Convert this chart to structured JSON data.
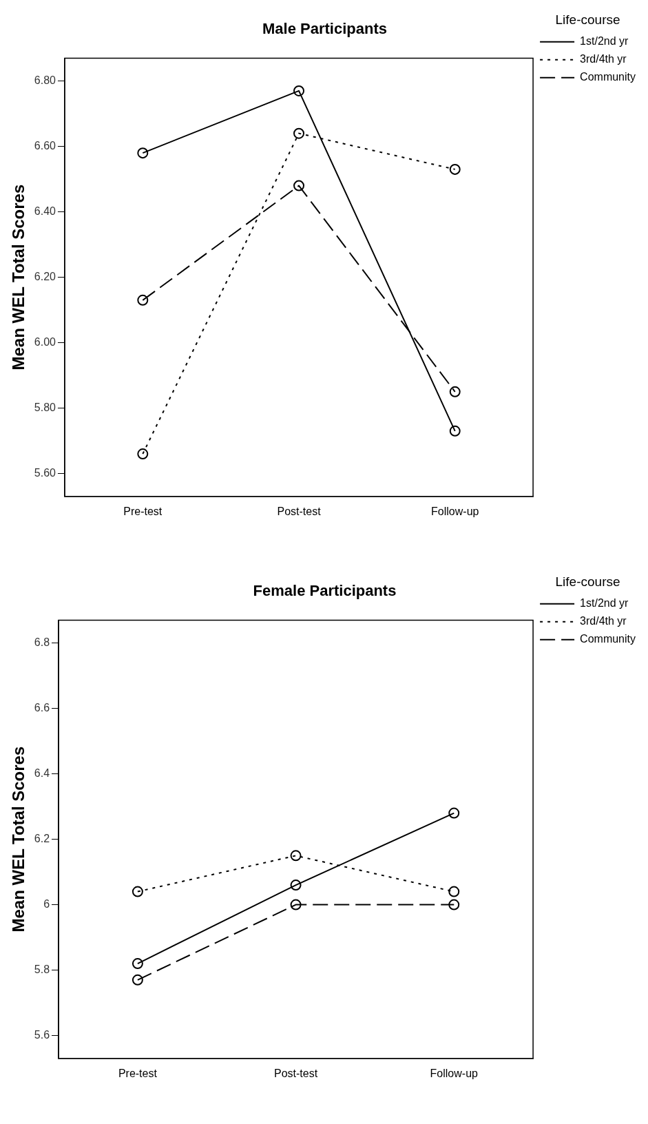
{
  "chart_data": [
    {
      "type": "line",
      "title": "Male Participants",
      "ylabel": "Mean WEL Total Scores",
      "legend_title": "Life-course",
      "legend": "right",
      "marker": "circle",
      "grid": false,
      "categories": [
        "Pre-test",
        "Post-test",
        "Follow-up"
      ],
      "ylim": [
        5.53,
        6.87
      ],
      "yticks": [
        {
          "value": 5.6,
          "label": "5.60"
        },
        {
          "value": 5.8,
          "label": "5.80"
        },
        {
          "value": 6.0,
          "label": "6.00"
        },
        {
          "value": 6.2,
          "label": "6.20"
        },
        {
          "value": 6.4,
          "label": "6.40"
        },
        {
          "value": 6.6,
          "label": "6.60"
        },
        {
          "value": 6.8,
          "label": "6.80"
        }
      ],
      "series": [
        {
          "name": "1st/2nd yr",
          "color": "#000000",
          "line_style": "solid",
          "values": [
            6.58,
            6.77,
            5.73
          ]
        },
        {
          "name": "3rd/4th yr",
          "color": "#000000",
          "line_style": "dotted",
          "values": [
            5.66,
            6.64,
            6.53
          ]
        },
        {
          "name": "Community",
          "color": "#000000",
          "line_style": "dashed",
          "values": [
            6.13,
            6.48,
            5.85
          ]
        }
      ]
    },
    {
      "type": "line",
      "title": "Female Participants",
      "ylabel": "Mean WEL Total Scores",
      "legend_title": "Life-course",
      "legend": "right",
      "marker": "circle",
      "grid": false,
      "categories": [
        "Pre-test",
        "Post-test",
        "Follow-up"
      ],
      "ylim": [
        5.53,
        6.87
      ],
      "yticks": [
        5.6,
        5.8,
        6.0,
        6.2,
        6.4,
        6.6,
        6.8
      ],
      "series": [
        {
          "name": "1st/2nd yr",
          "color": "#000000",
          "line_style": "solid",
          "values": [
            5.82,
            6.06,
            6.28
          ]
        },
        {
          "name": "3rd/4th yr",
          "color": "#000000",
          "line_style": "dotted",
          "values": [
            6.04,
            6.15,
            6.04
          ]
        },
        {
          "name": "Community",
          "color": "#000000",
          "line_style": "dashed",
          "values": [
            5.77,
            6.0,
            6.0
          ]
        }
      ]
    }
  ]
}
